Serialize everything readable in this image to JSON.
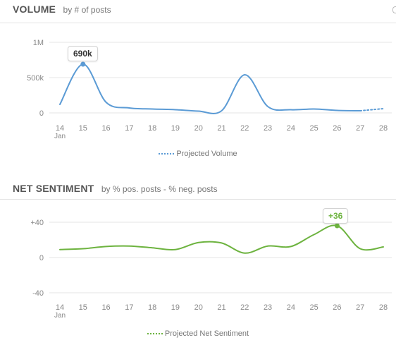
{
  "colors": {
    "volume": "#5b9bd5",
    "sentiment": "#6db33f",
    "grid": "#e6e6e6",
    "axis_text": "#888888"
  },
  "volume_panel": {
    "title": "VOLUME",
    "subtitle": "by # of posts",
    "legend": "Projected Volume",
    "tooltip": "690k"
  },
  "sentiment_panel": {
    "title": "NET SENTIMENT",
    "subtitle": "by % pos. posts - % neg. posts",
    "legend": "Projected Net Sentiment",
    "tooltip": "+36"
  },
  "chart_data": [
    {
      "type": "line",
      "title": "VOLUME",
      "subtitle": "by # of posts",
      "x_categories": [
        "14",
        "15",
        "16",
        "17",
        "18",
        "19",
        "20",
        "21",
        "22",
        "23",
        "24",
        "25",
        "26",
        "27",
        "28"
      ],
      "x_sub_label": "Jan",
      "y_ticks": [
        "1M",
        "500k",
        "0"
      ],
      "ylim": [
        0,
        1000000
      ],
      "series": [
        {
          "values": [
            120000,
            690000,
            150000,
            70000,
            55000,
            45000,
            25000,
            30000,
            540000,
            90000,
            45000,
            55000,
            35000,
            30000,
            null
          ]
        },
        {
          "name": "Projected Volume",
          "projected": true,
          "values": [
            null,
            null,
            null,
            null,
            null,
            null,
            null,
            null,
            null,
            null,
            null,
            null,
            null,
            30000,
            60000
          ]
        }
      ],
      "highlight": {
        "x": "15",
        "label": "690k"
      },
      "legend": "bottom-center",
      "grid": true
    },
    {
      "type": "line",
      "title": "NET SENTIMENT",
      "subtitle": "by % pos. posts - % neg. posts",
      "x_categories": [
        "14",
        "15",
        "16",
        "17",
        "18",
        "19",
        "20",
        "21",
        "22",
        "23",
        "24",
        "25",
        "26",
        "27",
        "28"
      ],
      "x_sub_label": "Jan",
      "y_ticks": [
        "+40",
        "0",
        "-40"
      ],
      "ylim": [
        -40,
        40
      ],
      "series": [
        {
          "values": [
            9,
            10,
            12.5,
            13,
            11,
            9,
            17,
            16.5,
            5,
            13,
            12.5,
            26,
            36,
            10,
            12
          ]
        },
        {
          "name": "Projected Net Sentiment",
          "projected": true,
          "values": []
        }
      ],
      "highlight": {
        "x": "26",
        "label": "+36"
      },
      "legend": "bottom-center",
      "grid": true
    }
  ]
}
